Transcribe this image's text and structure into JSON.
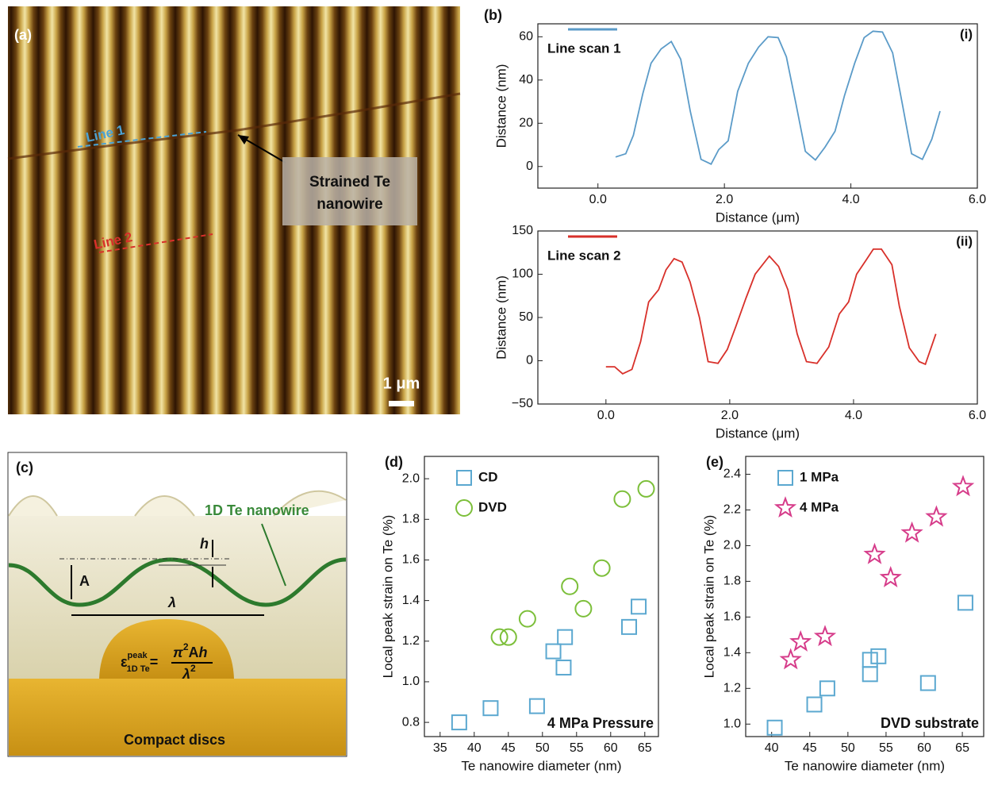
{
  "image_a": {
    "panel": "(a)",
    "line1": "Line 1",
    "line2": "Line 2",
    "callout": [
      "Strained Te",
      "nanowire"
    ],
    "scale_bar": "1 μm"
  },
  "diagram_c": {
    "panel": "(c)",
    "nanowire": "1D Te nanowire",
    "h": "h",
    "amplitude": "A",
    "wavelength": "λ",
    "substrate": "Compact discs",
    "formula": {
      "symbol": "ε",
      "sup": "peak",
      "sub": "1D Te",
      "eq": "=",
      "numerator": [
        "π",
        "2",
        "A",
        "h"
      ],
      "denominator": [
        "λ",
        "2"
      ]
    }
  },
  "chart_data": [
    {
      "type": "line",
      "panel": "(b)",
      "label": "(i)",
      "xlabel": "Distance (μm)",
      "ylabel": "Distance (nm)",
      "xlim": [
        -0.95,
        6.0
      ],
      "ylim": [
        -10,
        66
      ],
      "xticks": [
        {
          "value": 0,
          "label": "0.0"
        },
        {
          "value": 2,
          "label": "2.0"
        },
        {
          "value": 4,
          "label": "4.0"
        },
        {
          "value": 6,
          "label": "6.0"
        }
      ],
      "yticks": [
        0,
        20,
        40,
        60
      ],
      "series": [
        {
          "name": "Line scan 1",
          "color": "#5b9bc8",
          "x": [
            0.28,
            0.44,
            0.56,
            0.71,
            0.84,
            1.0,
            1.16,
            1.31,
            1.46,
            1.63,
            1.79,
            1.91,
            2.06,
            2.21,
            2.38,
            2.54,
            2.69,
            2.85,
            2.98,
            3.13,
            3.28,
            3.44,
            3.59,
            3.75,
            3.9,
            4.06,
            4.21,
            4.35,
            4.5,
            4.66,
            4.81,
            4.96,
            5.13,
            5.28,
            5.41
          ],
          "values": [
            4.4,
            5.9,
            14.4,
            33.7,
            47.8,
            54.4,
            57.8,
            49.6,
            25.6,
            3.3,
            1.1,
            7.8,
            11.9,
            34.8,
            47.8,
            55.2,
            60,
            59.6,
            50.7,
            29.3,
            7,
            3,
            8.9,
            16.3,
            32.9,
            47.8,
            59.6,
            62.6,
            62.2,
            52.6,
            29.6,
            5.9,
            3.3,
            12.6,
            25.6
          ]
        }
      ]
    },
    {
      "type": "line",
      "label": "(ii)",
      "xlabel": "Distance (μm)",
      "ylabel": "Distance (nm)",
      "xlim": [
        -1.1,
        6.0
      ],
      "ylim": [
        -50,
        150
      ],
      "xticks": [
        {
          "value": 0,
          "label": "0.0"
        },
        {
          "value": 2,
          "label": "2.0"
        },
        {
          "value": 4,
          "label": "4.0"
        },
        {
          "value": 6,
          "label": "6.0"
        }
      ],
      "yticks": [
        {
          "value": -50,
          "label": "−50"
        },
        0,
        50,
        100,
        150
      ],
      "series": [
        {
          "name": "Line scan 2",
          "color": "#d8302a",
          "x": [
            0,
            0.14,
            0.27,
            0.42,
            0.56,
            0.69,
            0.85,
            0.97,
            1.1,
            1.23,
            1.36,
            1.51,
            1.65,
            1.81,
            1.96,
            2.1,
            2.26,
            2.41,
            2.64,
            2.79,
            2.94,
            3.09,
            3.24,
            3.41,
            3.6,
            3.77,
            3.92,
            4.05,
            4.2,
            4.32,
            4.45,
            4.62,
            4.74,
            4.9,
            5.06,
            5.16,
            5.33
          ],
          "values": [
            -7,
            -7,
            -15,
            -10,
            22,
            68,
            82,
            105,
            118,
            114,
            91,
            50,
            -1,
            -3,
            13,
            40,
            72,
            100,
            121,
            109,
            82,
            31,
            -1,
            -3,
            16,
            54,
            68,
            100,
            116,
            129,
            129,
            111,
            63,
            15,
            -1,
            -4,
            31
          ]
        }
      ]
    },
    {
      "type": "scatter",
      "panel": "(d)",
      "xlabel": "Te nanowire diameter (nm)",
      "ylabel": "Local peak strain on Te (%)",
      "annotation": "4 MPa Pressure",
      "xlim": [
        32.7,
        67
      ],
      "ylim": [
        0.73,
        2.11
      ],
      "xticks": [
        35,
        40,
        45,
        50,
        55,
        60,
        65
      ],
      "yticks": [
        {
          "value": 0.8,
          "label": "0.8"
        },
        {
          "value": 1.0,
          "label": "1.0"
        },
        {
          "value": 1.2,
          "label": "1.2"
        },
        {
          "value": 1.4,
          "label": "1.4"
        },
        {
          "value": 1.6,
          "label": "1.6"
        },
        {
          "value": 1.8,
          "label": "1.8"
        },
        {
          "value": 2.0,
          "label": "2.0"
        }
      ],
      "series": [
        {
          "name": "CD",
          "color": "#5ba8d0",
          "marker": "square",
          "x": [
            37.8,
            42.4,
            49.2,
            51.6,
            53.3,
            53.1,
            62.7,
            64.1
          ],
          "values": [
            0.8,
            0.87,
            0.88,
            1.15,
            1.22,
            1.07,
            1.27,
            1.37
          ]
        },
        {
          "name": "DVD",
          "color": "#7cbf3a",
          "marker": "circle",
          "x": [
            43.7,
            45.0,
            47.8,
            54.0,
            56.0,
            58.7,
            61.7,
            65.2
          ],
          "values": [
            1.22,
            1.22,
            1.31,
            1.47,
            1.36,
            1.56,
            1.9,
            1.95
          ]
        }
      ]
    },
    {
      "type": "scatter",
      "panel": "(e)",
      "xlabel": "Te nanowire diameter (nm)",
      "ylabel": "Local peak strain on Te (%)",
      "annotation": "DVD substrate",
      "xlim": [
        36.6,
        67.8
      ],
      "ylim": [
        0.93,
        2.5
      ],
      "xticks": [
        40,
        45,
        50,
        55,
        60,
        65
      ],
      "yticks": [
        {
          "value": 1.0,
          "label": "1.0"
        },
        {
          "value": 1.2,
          "label": "1.2"
        },
        {
          "value": 1.4,
          "label": "1.4"
        },
        {
          "value": 1.6,
          "label": "1.6"
        },
        {
          "value": 1.8,
          "label": "1.8"
        },
        {
          "value": 2.0,
          "label": "2.0"
        },
        {
          "value": 2.2,
          "label": "2.2"
        },
        {
          "value": 2.4,
          "label": "2.4"
        }
      ],
      "series": [
        {
          "name": "1 MPa",
          "color": "#5ba8d0",
          "marker": "square",
          "x": [
            40.4,
            45.6,
            47.3,
            52.9,
            52.9,
            54.0,
            60.5,
            65.4
          ],
          "values": [
            0.98,
            1.11,
            1.2,
            1.36,
            1.28,
            1.38,
            1.23,
            1.68
          ]
        },
        {
          "name": "4 MPa",
          "color": "#d63c8a",
          "marker": "star",
          "x": [
            42.5,
            43.8,
            47.0,
            53.5,
            55.6,
            58.4,
            61.6,
            65.1
          ],
          "values": [
            1.36,
            1.46,
            1.49,
            1.95,
            1.82,
            2.07,
            2.16,
            2.33
          ]
        }
      ]
    }
  ]
}
